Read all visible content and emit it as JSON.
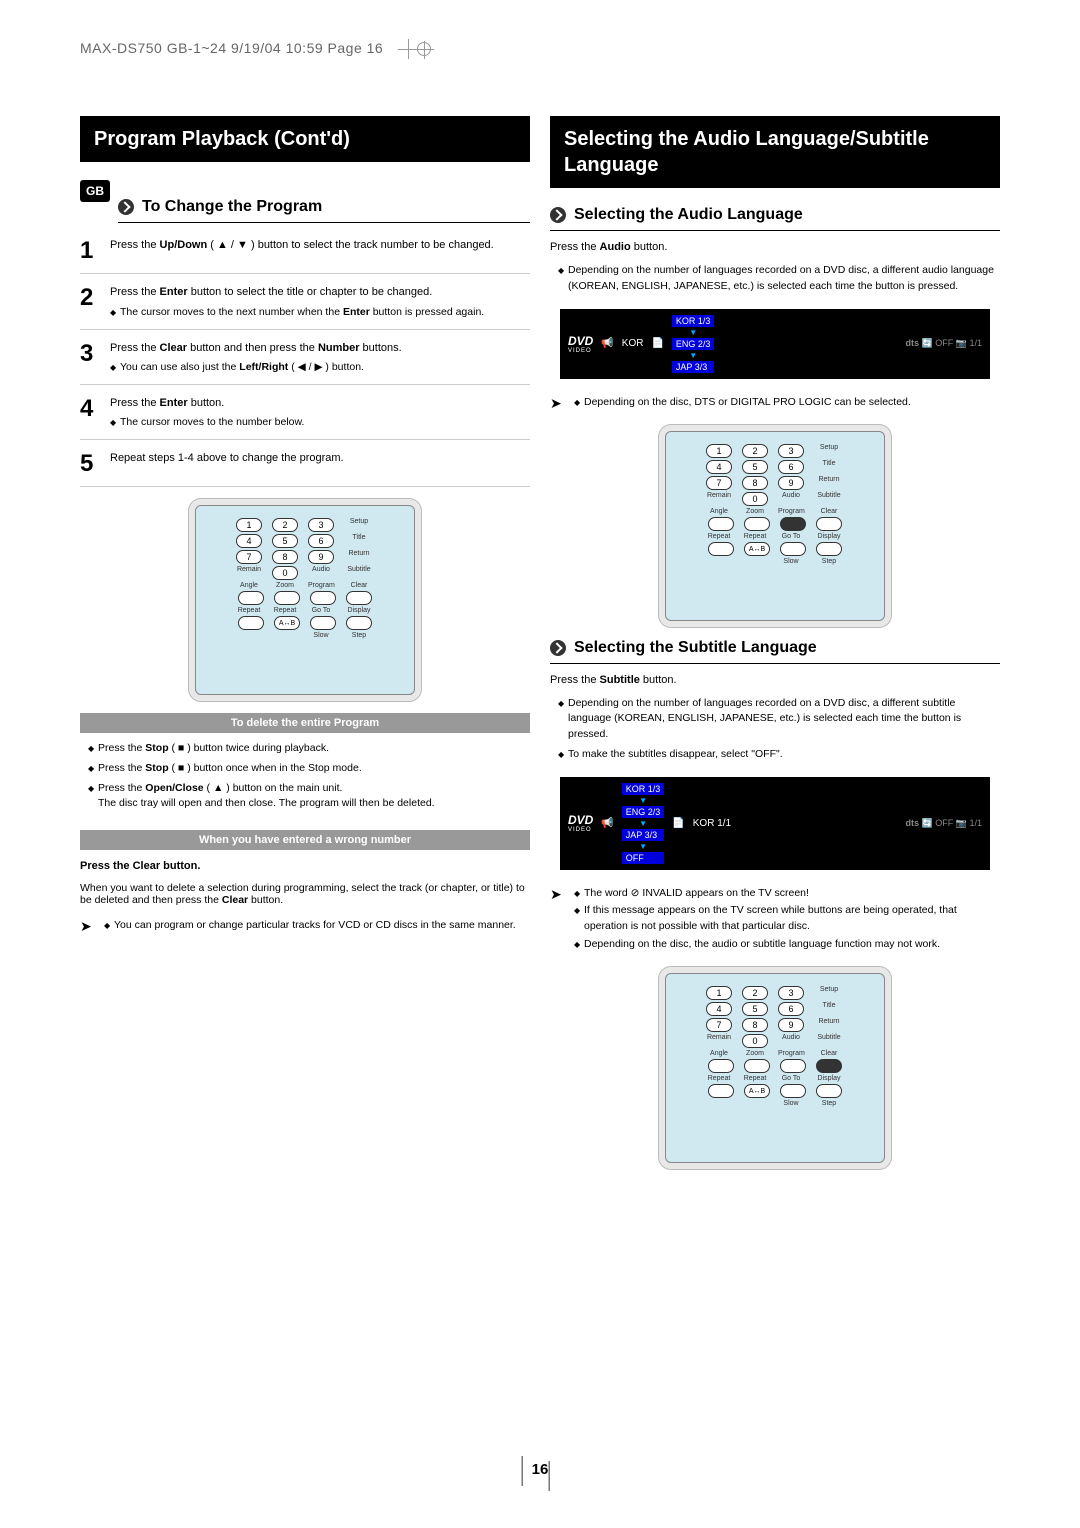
{
  "header": {
    "text": "MAX-DS750 GB-1~24  9/19/04 10:59  Page 16"
  },
  "badge": "GB",
  "left": {
    "title": "Program Playback (Cont'd)",
    "section1": "To Change the Program",
    "steps": [
      {
        "n": "1",
        "body": "Press the <b>Up/Down</b> ( ▲ / ▼ ) button to select the track number to be changed."
      },
      {
        "n": "2",
        "body": "Press the <b>Enter</b> button to select the title or chapter to be changed.",
        "sub": "The cursor moves to the next number when the <b>Enter</b> button is pressed again."
      },
      {
        "n": "3",
        "body": "Press the <b>Clear</b> button and then press the <b>Number</b> buttons.",
        "sub": "You can use also just the <b>Left/Right</b> ( ◀ / ▶ ) button."
      },
      {
        "n": "4",
        "body": "Press the <b>Enter</b> button.",
        "sub": "The cursor moves to the number below."
      },
      {
        "n": "5",
        "body": "Repeat steps 1-4 above to change the program."
      }
    ],
    "bar1": "To delete the entire Program",
    "del_bullets": [
      "Press the <b>Stop</b> ( ■ ) button twice during playback.",
      "Press the <b>Stop</b> ( ■ ) button once when in the Stop mode.",
      "Press the <b>Open/Close</b> ( ▲ ) button on the main unit.\nThe disc tray will open and then close. The program will then be deleted."
    ],
    "bar2": "When you have entered a wrong number",
    "clear_head": "Press the Clear button.",
    "clear_body": "When you want to delete a selection during programming, select the track (or chapter, or title) to be deleted and then press the <b>Clear</b> button.",
    "note": "You can program or change particular tracks for VCD or CD discs in the same manner."
  },
  "right": {
    "title": "Selecting the Audio Language/Subtitle Language",
    "sec_audio": "Selecting the Audio Language",
    "audio_press": "Press the <b>Audio</b> button.",
    "audio_sub": "Depending on the number of languages recorded on a DVD disc, a different audio language (KOREAN, ENGLISH, JAPANESE, etc.) is selected each time the button is pressed.",
    "audio_langs": {
      "kor_label": "KOR",
      "sel": "KOR 1/3",
      "eng": "ENG 2/3",
      "jap": "JAP 3/3",
      "off": "OFF",
      "count": "1/1"
    },
    "audio_note": "Depending on the disc, DTS or DIGITAL PRO LOGIC can be selected.",
    "sec_sub": "Selecting the Subtitle Language",
    "sub_press": "Press the <b>Subtitle</b> button.",
    "sub_sub1": "Depending on the number of languages recorded on a DVD disc, a different subtitle language (KOREAN, ENGLISH, JAPANESE, etc.) is selected each time the button is pressed.",
    "sub_sub2": "To make the subtitles disappear, select \"OFF\".",
    "sub_langs": {
      "sel": "KOR 1/3",
      "kor2": "KOR 1/1",
      "eng": "ENG 2/3",
      "jap": "JAP 3/3",
      "off_item": "OFF",
      "off": "OFF",
      "count": "1/1"
    },
    "sub_note1": "The word ⊘ INVALID appears on the TV screen!",
    "sub_note2": "If this message appears on the TV screen while buttons are being operated, that operation is not possible with that particular disc.",
    "sub_note3": "Depending on the disc, the audio or subtitle language function may not work."
  },
  "remote": {
    "side_labels": [
      "Setup",
      "Title",
      "Return",
      "Subtitle",
      "Clear",
      "Display",
      "Step"
    ],
    "left_labels": [
      "Remain",
      "Angle",
      "Repeat"
    ],
    "bottom": [
      "Zoom",
      "Program",
      "Go To",
      "Slow"
    ],
    "ab": "A↔B",
    "audio": "Audio",
    "repeat": "Repeat"
  },
  "page_number": "16",
  "colors": {
    "black": "#000000",
    "blue": "#0000dd",
    "remote_bg": "#d0e8f0",
    "gray_bar": "#999999"
  }
}
